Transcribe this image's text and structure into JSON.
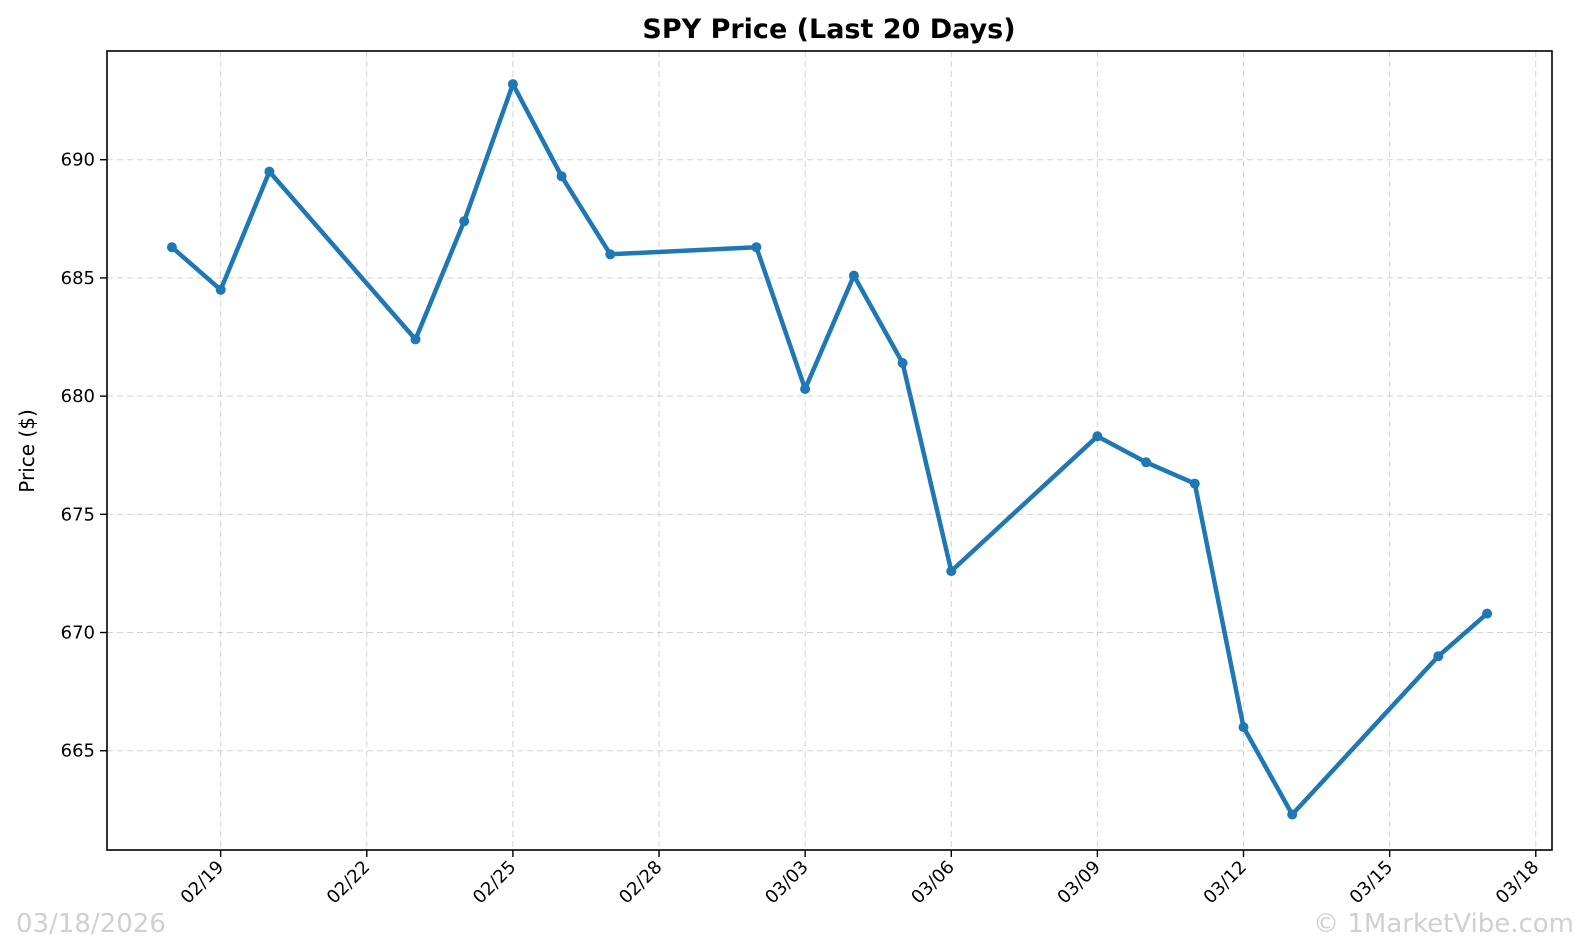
{
  "chart_data": {
    "type": "line",
    "title": "SPY Price (Last 20 Days)",
    "xlabel": "",
    "ylabel": "Price ($)",
    "x_ticks": [
      "02/19",
      "02/22",
      "02/25",
      "02/28",
      "03/03",
      "03/06",
      "03/09",
      "03/12",
      "03/15",
      "03/18"
    ],
    "y_ticks": [
      665,
      670,
      675,
      680,
      685,
      690
    ],
    "xlim": [
      "2026-02-16T16:00",
      "2026-03-18T08:00"
    ],
    "ylim": [
      660.8,
      694.6
    ],
    "grid": true,
    "line_color": "#1f77b4",
    "series": [
      {
        "x": [
          "2026-02-18",
          "2026-02-19",
          "2026-02-20",
          "2026-02-23",
          "2026-02-24",
          "2026-02-25",
          "2026-02-26",
          "2026-02-27",
          "2026-03-02",
          "2026-03-03",
          "2026-03-04",
          "2026-03-05",
          "2026-03-06",
          "2026-03-09",
          "2026-03-10",
          "2026-03-11",
          "2026-03-12",
          "2026-03-13",
          "2026-03-16",
          "2026-03-17"
        ],
        "values": [
          686.3,
          684.5,
          689.5,
          682.4,
          687.4,
          693.2,
          689.3,
          686.0,
          686.3,
          680.3,
          685.1,
          681.4,
          672.6,
          678.3,
          677.2,
          676.3,
          666.0,
          662.3,
          669.0,
          670.8
        ]
      }
    ]
  },
  "footer": {
    "date": "03/18/2026",
    "watermark": "© 1MarketVibe.com"
  }
}
